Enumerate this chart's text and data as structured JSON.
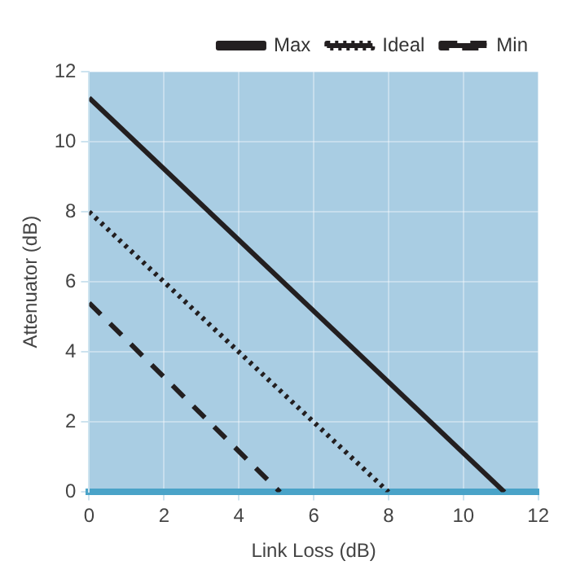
{
  "chart_data": {
    "type": "line",
    "xlabel": "Link Loss (dB)",
    "ylabel": "Attenuator (dB)",
    "xlim": [
      0,
      12
    ],
    "xticks": [
      0,
      2,
      4,
      6,
      8,
      10,
      12
    ],
    "ylim": [
      0,
      12
    ],
    "yticks": [
      0,
      2,
      4,
      6,
      8,
      10,
      12
    ],
    "grid": true,
    "legend": "top right",
    "marker": "none",
    "series": [
      {
        "name": "Max",
        "color": "#231f20",
        "x": [
          0,
          11.1
        ],
        "values": [
          11.25,
          0
        ],
        "line_style": "solid"
      },
      {
        "name": "Ideal",
        "color": "#231f20",
        "x": [
          0,
          8
        ],
        "values": [
          8,
          0
        ],
        "line_style": "dotted"
      },
      {
        "name": "Min",
        "color": "#231f20",
        "x": [
          0,
          5.1
        ],
        "values": [
          5.4,
          0
        ],
        "line_style": "dashed"
      }
    ]
  }
}
